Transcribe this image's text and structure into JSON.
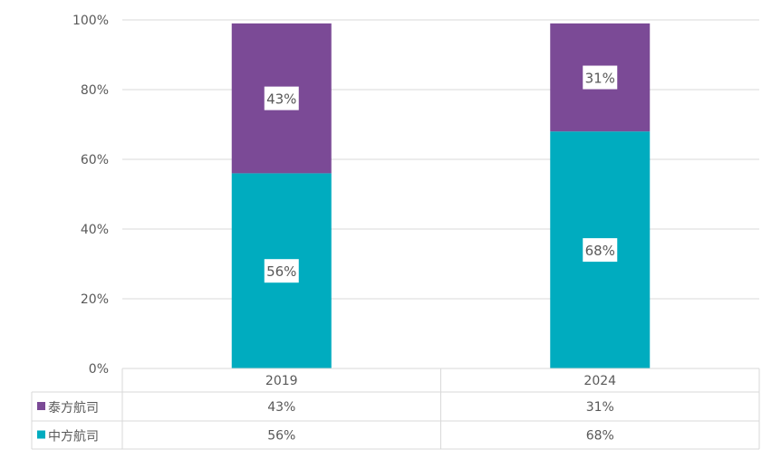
{
  "chart_data": {
    "type": "bar",
    "stacked": true,
    "categories": [
      "2019",
      "2024"
    ],
    "series": [
      {
        "name": "中方航司",
        "values": [
          56,
          68
        ],
        "labels": [
          "56%",
          "68%"
        ],
        "color": "#00ACBF"
      },
      {
        "name": "泰方航司",
        "values": [
          43,
          31
        ],
        "labels": [
          "43%",
          "31%"
        ],
        "color": "#7B4A96"
      }
    ],
    "y_ticks": [
      "0%",
      "20%",
      "40%",
      "60%",
      "80%",
      "100%"
    ],
    "ylim": [
      0,
      100
    ],
    "grid": true,
    "data_table": {
      "header": [
        "2019",
        "2024"
      ],
      "rows": [
        {
          "legend": "泰方航司",
          "color": "#7B4A96",
          "cells": [
            "43%",
            "31%"
          ]
        },
        {
          "legend": "中方航司",
          "color": "#00ACBF",
          "cells": [
            "56%",
            "68%"
          ]
        }
      ]
    }
  }
}
